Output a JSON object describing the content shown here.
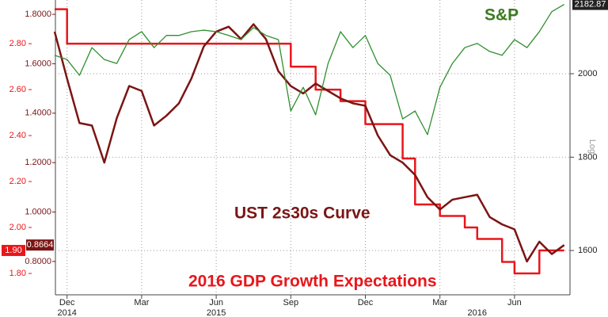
{
  "chart_data": {
    "type": "line",
    "categories": [
      null,
      "Dec",
      null,
      null,
      null,
      null,
      null,
      "Mar",
      null,
      null,
      null,
      null,
      null,
      "Jun",
      null,
      null,
      null,
      null,
      null,
      "Sep",
      null,
      null,
      null,
      null,
      null,
      "Dec",
      null,
      null,
      null,
      null,
      null,
      "Mar",
      null,
      null,
      null,
      null,
      null,
      "Jun",
      null,
      null,
      null,
      null
    ],
    "years": [
      "2014",
      "2015",
      "2016"
    ],
    "series": [
      {
        "name": "2016 GDP Growth Expectations",
        "color": "#e8161b",
        "axis": "y",
        "step": true,
        "values": [
          2.95,
          2.8,
          2.8,
          2.8,
          2.8,
          2.8,
          2.8,
          2.8,
          2.8,
          2.8,
          2.8,
          2.8,
          2.8,
          2.8,
          2.8,
          2.8,
          2.8,
          2.8,
          2.8,
          2.7,
          2.7,
          2.6,
          2.6,
          2.55,
          2.55,
          2.45,
          2.45,
          2.45,
          2.3,
          2.1,
          2.1,
          2.05,
          2.05,
          2.0,
          1.95,
          1.95,
          1.85,
          1.8,
          1.8,
          1.9,
          1.9,
          1.9
        ],
        "value_labels": [
          null,
          null,
          null,
          null,
          null,
          null,
          null,
          null,
          null,
          null,
          null,
          null,
          null,
          null,
          null,
          null,
          null,
          null,
          null,
          null,
          null,
          null,
          null,
          null,
          null,
          null,
          null,
          null,
          null,
          null,
          null,
          null,
          null,
          null,
          null,
          null,
          null,
          null,
          null,
          null,
          null,
          "1.90"
        ]
      },
      {
        "name": "UST 2s30s Curve",
        "color": "#7b1414",
        "axis": "y2",
        "values": [
          1.73,
          1.54,
          1.36,
          1.35,
          1.2,
          1.38,
          1.51,
          1.49,
          1.35,
          1.39,
          1.44,
          1.54,
          1.67,
          1.73,
          1.75,
          1.7,
          1.76,
          1.7,
          1.57,
          1.51,
          1.48,
          1.52,
          1.49,
          1.46,
          1.44,
          1.43,
          1.31,
          1.23,
          1.2,
          1.15,
          1.06,
          1.01,
          1.05,
          1.06,
          1.07,
          0.98,
          0.95,
          0.93,
          0.8,
          0.88,
          0.83,
          0.8664
        ]
      },
      {
        "name": "S&P",
        "color": "#2f8f2f",
        "axis": "y3",
        "values": [
          2047,
          2036,
          1996,
          2067,
          2036,
          2026,
          2088,
          2109,
          2067,
          2099,
          2099,
          2109,
          2113,
          2109,
          2099,
          2088,
          2120,
          2099,
          2088,
          1908,
          1966,
          1899,
          2026,
          2109,
          2067,
          2099,
          2026,
          1996,
          1889,
          1908,
          1852,
          1966,
          2026,
          2067,
          2078,
          2057,
          2047,
          2088,
          2067,
          2109,
          2163,
          2182.87
        ]
      }
    ],
    "ylim": [
      1.707,
      2.99
    ],
    "yticks": [
      {
        "value": 1.8,
        "label": "1.80"
      },
      {
        "value": 2.0,
        "label": "2.00"
      },
      {
        "value": 2.2,
        "label": "2.20"
      },
      {
        "value": 2.4,
        "label": "2.40"
      },
      {
        "value": 2.6,
        "label": "2.60"
      },
      {
        "value": 2.8,
        "label": "2.80"
      }
    ],
    "y2lim": [
      0.665,
      1.858
    ],
    "y2ticks": [
      {
        "value": 0.8,
        "label": "0.8000"
      },
      {
        "value": 1.0,
        "label": "1.0000"
      },
      {
        "value": 1.2,
        "label": "1.2000"
      },
      {
        "value": 1.4,
        "label": "1.4000"
      },
      {
        "value": 1.6,
        "label": "1.6000"
      },
      {
        "value": 1.8,
        "label": "1.8000"
      }
    ],
    "y3lim": [
      1513,
      2195
    ],
    "y3ticks": [
      1600,
      1800,
      2000
    ],
    "y3_log": true,
    "y3_scale_label": "Log",
    "grid": true
  }
}
